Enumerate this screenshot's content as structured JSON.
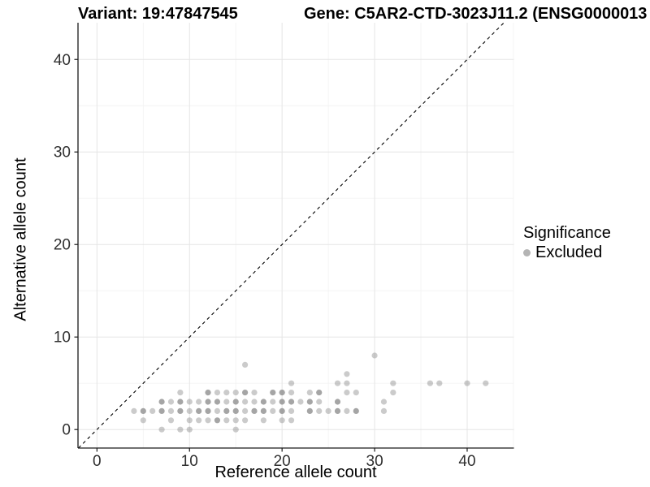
{
  "figure": {
    "variant_title": "Variant: 19:47847545",
    "gene_title": "Gene: C5AR2-CTD-3023J11.2 (ENSG0000013",
    "legend": {
      "title": "Significance",
      "items": [
        {
          "label": "Excluded",
          "color": "#b4b4b4"
        }
      ]
    }
  },
  "colors": {
    "point_fill": "#8c8c8c",
    "grid_major": "#e5e5e5",
    "grid_minor": "#f3f3f3",
    "axis_line": "#1a1a1a",
    "tick_label": "#303030",
    "identity_line": "#000000"
  },
  "chart_data": {
    "type": "scatter",
    "title": "Variant: 19:47847545 | Gene: C5AR2-CTD-3023J11.2 (ENSG0000013",
    "xlabel": "Reference allele count",
    "ylabel": "Alternative allele count",
    "legend_title": "Significance",
    "series_name": "Excluded",
    "x_ticks": [
      0,
      10,
      20,
      30,
      40
    ],
    "y_ticks": [
      0,
      10,
      20,
      30,
      40
    ],
    "x_minor_ticks": [
      5,
      15,
      25,
      35,
      45
    ],
    "y_minor_ticks": [
      5,
      15,
      25,
      35
    ],
    "xlim": [
      -2.05,
      45.05
    ],
    "ylim": [
      -2.0,
      43.97
    ],
    "grid": true,
    "legend_position": "right",
    "identity_line": {
      "style": "dashed",
      "from": [
        -2.0,
        -2.0
      ],
      "to": [
        43.97,
        43.97
      ]
    },
    "points_format": "[reference_allele_count, alternative_allele_count, dark_overplot_flag]",
    "points": [
      [
        7,
        0,
        0
      ],
      [
        9,
        0,
        0
      ],
      [
        10,
        0,
        0
      ],
      [
        15,
        0,
        0
      ],
      [
        5,
        1,
        0
      ],
      [
        8,
        1,
        0
      ],
      [
        10,
        1,
        0
      ],
      [
        11,
        1,
        0
      ],
      [
        12,
        1,
        0
      ],
      [
        13,
        1,
        1
      ],
      [
        14,
        1,
        0
      ],
      [
        15,
        1,
        0
      ],
      [
        16,
        1,
        0
      ],
      [
        18,
        1,
        0
      ],
      [
        20,
        1,
        0
      ],
      [
        21,
        1,
        0
      ],
      [
        4,
        2,
        0
      ],
      [
        5,
        2,
        1
      ],
      [
        6,
        2,
        0
      ],
      [
        7,
        2,
        1
      ],
      [
        8,
        2,
        0
      ],
      [
        9,
        2,
        1
      ],
      [
        10,
        2,
        0
      ],
      [
        11,
        2,
        1
      ],
      [
        12,
        2,
        1
      ],
      [
        13,
        2,
        0
      ],
      [
        14,
        2,
        1
      ],
      [
        15,
        2,
        1
      ],
      [
        16,
        2,
        0
      ],
      [
        17,
        2,
        1
      ],
      [
        18,
        2,
        1
      ],
      [
        19,
        2,
        0
      ],
      [
        20,
        2,
        1
      ],
      [
        21,
        2,
        0
      ],
      [
        23,
        2,
        1
      ],
      [
        24,
        2,
        0
      ],
      [
        25,
        2,
        0
      ],
      [
        26,
        2,
        1
      ],
      [
        27,
        2,
        0
      ],
      [
        28,
        2,
        1
      ],
      [
        31,
        2,
        0
      ],
      [
        7,
        3,
        1
      ],
      [
        8,
        3,
        0
      ],
      [
        9,
        3,
        1
      ],
      [
        10,
        3,
        0
      ],
      [
        11,
        3,
        0
      ],
      [
        12,
        3,
        1
      ],
      [
        13,
        3,
        1
      ],
      [
        14,
        3,
        0
      ],
      [
        15,
        3,
        1
      ],
      [
        16,
        3,
        0
      ],
      [
        17,
        3,
        0
      ],
      [
        18,
        3,
        1
      ],
      [
        19,
        3,
        0
      ],
      [
        20,
        3,
        1
      ],
      [
        21,
        3,
        1
      ],
      [
        22,
        3,
        0
      ],
      [
        23,
        3,
        1
      ],
      [
        24,
        3,
        0
      ],
      [
        26,
        3,
        1
      ],
      [
        31,
        3,
        0
      ],
      [
        9,
        4,
        0
      ],
      [
        12,
        4,
        1
      ],
      [
        13,
        4,
        0
      ],
      [
        14,
        4,
        0
      ],
      [
        15,
        4,
        0
      ],
      [
        16,
        4,
        1
      ],
      [
        17,
        4,
        0
      ],
      [
        19,
        4,
        1
      ],
      [
        20,
        4,
        1
      ],
      [
        21,
        4,
        0
      ],
      [
        23,
        4,
        0
      ],
      [
        24,
        4,
        1
      ],
      [
        27,
        4,
        0
      ],
      [
        28,
        4,
        0
      ],
      [
        32,
        4,
        0
      ],
      [
        21,
        5,
        0
      ],
      [
        26,
        5,
        0
      ],
      [
        27,
        5,
        0
      ],
      [
        32,
        5,
        0
      ],
      [
        36,
        5,
        0
      ],
      [
        37,
        5,
        0
      ],
      [
        40,
        5,
        0
      ],
      [
        42,
        5,
        0
      ],
      [
        27,
        6,
        0
      ],
      [
        16,
        7,
        0
      ],
      [
        30,
        8,
        0
      ]
    ]
  }
}
